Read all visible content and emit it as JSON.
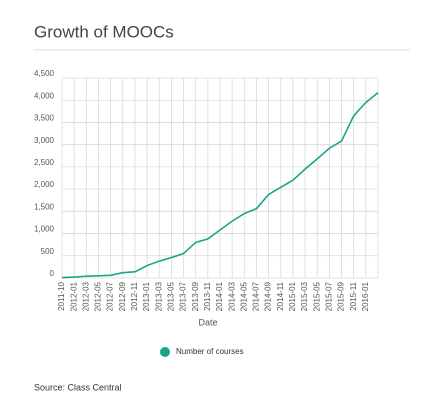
{
  "chart_data": {
    "type": "line",
    "title": "Growth of MOOCs",
    "x_label": "Date",
    "source": "Source: Class Central",
    "categories": [
      "2011-10",
      "2012-01",
      "2012-03",
      "2012-05",
      "2012-07",
      "2012-09",
      "2012-11",
      "2013-01",
      "2013-03",
      "2013-05",
      "2013-07",
      "2013-09",
      "2013-11",
      "2014-01",
      "2014-03",
      "2014-05",
      "2014-07",
      "2014-09",
      "2014-11",
      "2015-01",
      "2015-03",
      "2015-05",
      "2015-07",
      "2015-09",
      "2015-11",
      "2016-01",
      null
    ],
    "series": [
      {
        "name": "Number of courses",
        "color": "#1aa58a",
        "values": [
          10,
          20,
          40,
          50,
          60,
          120,
          140,
          280,
          380,
          460,
          550,
          800,
          880,
          1080,
          1280,
          1450,
          1560,
          1880,
          2040,
          2200,
          2450,
          2680,
          2920,
          3080,
          3650,
          3950,
          4170
        ]
      }
    ],
    "ylim": [
      0,
      4500
    ],
    "yticks": [
      0,
      500,
      {
        "value": 1000,
        "label": "1,000"
      },
      {
        "value": 1500,
        "label": "1,500"
      },
      {
        "value": 2000,
        "label": "2,000"
      },
      {
        "value": 2500,
        "label": "2,500"
      },
      {
        "value": 3000,
        "label": "3,000"
      },
      {
        "value": 3500,
        "label": "3,500"
      },
      {
        "value": 4000,
        "label": "4,000"
      },
      {
        "value": 4500,
        "label": "4,500"
      }
    ],
    "grid": true
  }
}
